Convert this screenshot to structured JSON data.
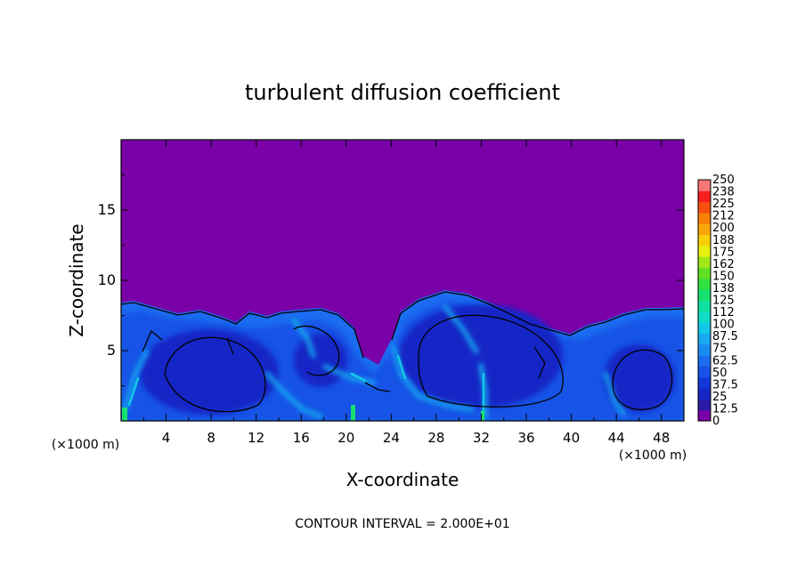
{
  "chart_data": {
    "type": "heatmap",
    "title": "turbulent diffusion coefficient",
    "xlabel": "X-coordinate",
    "ylabel": "Z-coordinate",
    "x_unit": "(×1000 m)",
    "y_unit": "(×1000 m)",
    "xlim": [
      0,
      50
    ],
    "ylim": [
      0,
      20
    ],
    "xticks": [
      4,
      8,
      12,
      16,
      20,
      24,
      28,
      32,
      36,
      40,
      44,
      48
    ],
    "yticks": [
      5,
      10,
      15
    ],
    "footer": "CONTOUR INTERVAL = 2.000E+01",
    "colorbar": {
      "labels": [
        "0",
        "12.5",
        "25",
        "37.5",
        "50",
        "62.5",
        "75",
        "87.5",
        "100",
        "112",
        "125",
        "138",
        "150",
        "162",
        "175",
        "188",
        "200",
        "212",
        "225",
        "238",
        "250"
      ],
      "colors": [
        "#7a00a8",
        "#2a1aa8",
        "#1526c6",
        "#1238dc",
        "#1852e6",
        "#1c6cf0",
        "#1c8cf0",
        "#18aaf0",
        "#14c8e8",
        "#10dcc8",
        "#10e0a0",
        "#18e070",
        "#30e040",
        "#60e020",
        "#a0e818",
        "#e8f010",
        "#f8d008",
        "#f8a808",
        "#f88008",
        "#f85010",
        "#f82020",
        "#f87878"
      ],
      "range": [
        0,
        250
      ]
    },
    "field_summary": {
      "upper_region_value": 0,
      "mixed_layer_top_km": [
        8.5,
        9.3,
        8.0
      ],
      "cell_centers_km": [
        [
          8,
          3
        ],
        [
          29,
          4
        ],
        [
          45,
          3
        ]
      ],
      "cell_value_range": [
        25,
        50
      ]
    }
  }
}
